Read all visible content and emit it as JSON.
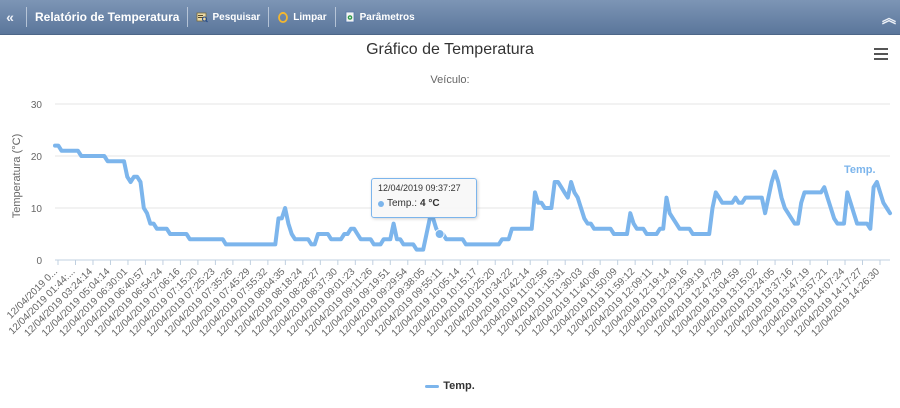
{
  "toolbar": {
    "collapse_left_icon": "double-chevron-left-icon",
    "title": "Relatório de Temperatura",
    "search_label": "Pesquisar",
    "clear_label": "Limpar",
    "params_label": "Parâmetros",
    "collapse_right_icon": "double-chevron-up-icon"
  },
  "chart": {
    "title": "Gráfico de Temperatura",
    "subtitle": "Veículo:",
    "series_label": "Temp.",
    "legend_label": "Temp.",
    "menu_icon": "hamburger-menu-icon",
    "tooltip": {
      "date": "12/04/2019 09:37:27",
      "label": "Temp.:",
      "value": "4 °C"
    }
  },
  "colors": {
    "toolbar": "#6f88ab",
    "series": "#7cb5ec",
    "grid": "#e6e6e6"
  },
  "chart_data": {
    "type": "line",
    "ylabel": "Temperatura (°C)",
    "ylim": [
      0,
      30
    ],
    "yticks": [
      0,
      10,
      20,
      30
    ],
    "grid": true,
    "legend": "bottom-center",
    "x_labels": [
      "12/04/2019 0...",
      "12/04/2019 01:44:...",
      "12/04/2019 03:24:14",
      "12/04/2019 05:04:14",
      "12/04/2019 06:30:01",
      "12/04/2019 06:40:57",
      "12/04/2019 06:54:24",
      "12/04/2019 07:06:16",
      "12/04/2019 07:15:20",
      "12/04/2019 07:25:23",
      "12/04/2019 07:35:26",
      "12/04/2019 07:45:29",
      "12/04/2019 07:55:32",
      "12/04/2019 08:04:35",
      "12/04/2019 08:18:24",
      "12/04/2019 08:28:27",
      "12/04/2019 08:37:30",
      "12/04/2019 09:01:23",
      "12/04/2019 09:11:26",
      "12/04/2019 09:19:51",
      "12/04/2019 09:29:54",
      "12/04/2019 09:38:05",
      "12/04/2019 09:55:11",
      "12/04/2019 10:05:14",
      "12/04/2019 10:15:17",
      "12/04/2019 10:25:20",
      "12/04/2019 10:34:22",
      "12/04/2019 10:42:14",
      "12/04/2019 11:02:56",
      "12/04/2019 11:15:31",
      "12/04/2019 11:30:03",
      "12/04/2019 11:40:06",
      "12/04/2019 11:50:09",
      "12/04/2019 11:59:12",
      "12/04/2019 12:09:11",
      "12/04/2019 12:19:14",
      "12/04/2019 12:29:16",
      "12/04/2019 12:39:19",
      "12/04/2019 12:47:29",
      "12/04/2019 13:04:59",
      "12/04/2019 13:15:02",
      "12/04/2019 13:24:05",
      "12/04/2019 13:37:16",
      "12/04/2019 13:47:19",
      "12/04/2019 13:57:21",
      "12/04/2019 14:07:24",
      "12/04/2019 14:17:27",
      "12/04/2019 14:26:30"
    ],
    "series": [
      {
        "name": "Temp.",
        "values": [
          22,
          22,
          21,
          21,
          21,
          21,
          21,
          21,
          20,
          20,
          20,
          20,
          20,
          20,
          20,
          20,
          19,
          19,
          19,
          19,
          19,
          19,
          16,
          15,
          16,
          16,
          15,
          10,
          9,
          7,
          7,
          6,
          6,
          6,
          6,
          5,
          5,
          5,
          5,
          5,
          5,
          4,
          4,
          4,
          4,
          4,
          4,
          4,
          4,
          4,
          4,
          4,
          3,
          3,
          3,
          3,
          3,
          3,
          3,
          3,
          3,
          3,
          3,
          3,
          3,
          3,
          3,
          3,
          8,
          8,
          10,
          7,
          5,
          4,
          4,
          4,
          4,
          4,
          3,
          3,
          5,
          5,
          5,
          5,
          4,
          4,
          4,
          4,
          5,
          5,
          6,
          6,
          5,
          4,
          4,
          4,
          4,
          3,
          3,
          3,
          4,
          4,
          4,
          7,
          4,
          4,
          3,
          3,
          3,
          3,
          2,
          2,
          2,
          5,
          8,
          8,
          6,
          5,
          5,
          4,
          4,
          4,
          4,
          4,
          4,
          3,
          3,
          3,
          3,
          3,
          3,
          3,
          3,
          3,
          3,
          3,
          4,
          4,
          4,
          6,
          6,
          6,
          6,
          6,
          6,
          6,
          13,
          11,
          11,
          10,
          10,
          10,
          15,
          15,
          14,
          13,
          12,
          15,
          13,
          12,
          10,
          8,
          7,
          7,
          6,
          6,
          6,
          6,
          6,
          6,
          5,
          5,
          5,
          5,
          5,
          9,
          7,
          6,
          6,
          6,
          5,
          5,
          5,
          5,
          6,
          6,
          12,
          9,
          8,
          7,
          6,
          6,
          6,
          6,
          5,
          5,
          5,
          5,
          5,
          5,
          10,
          13,
          12,
          11,
          11,
          11,
          11,
          12,
          11,
          11,
          12,
          12,
          12,
          12,
          12,
          12,
          9,
          12,
          15,
          17,
          15,
          12,
          10,
          9,
          8,
          7,
          7,
          11,
          13,
          13,
          13,
          13,
          13,
          13,
          14,
          12,
          10,
          8,
          7,
          7,
          7,
          13,
          11,
          9,
          7,
          7,
          7,
          7,
          6,
          14,
          15,
          13,
          11,
          10,
          9
        ]
      }
    ]
  }
}
